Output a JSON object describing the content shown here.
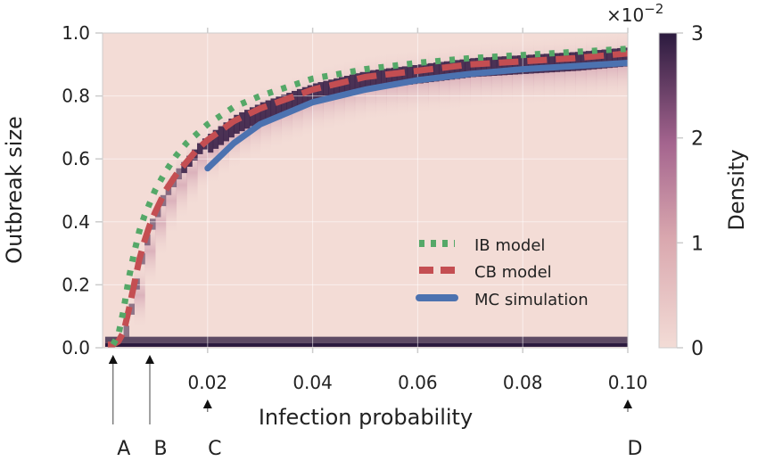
{
  "chart_data": {
    "type": "heatmap",
    "xlabel": "Infection probability",
    "ylabel": "Outbreak size",
    "xlim": [
      0.0,
      0.1
    ],
    "ylim": [
      0.0,
      1.0
    ],
    "xticks": [
      0.02,
      0.04,
      0.06,
      0.08,
      0.1
    ],
    "xtick_labels": [
      "0.02",
      "0.04",
      "0.06",
      "0.08",
      "0.10"
    ],
    "yticks": [
      0.0,
      0.2,
      0.4,
      0.6,
      0.8,
      1.0
    ],
    "ytick_labels": [
      "0.0",
      "0.2",
      "0.4",
      "0.6",
      "0.8",
      "1.0"
    ],
    "grid": true,
    "legend_position": "lower-right",
    "colorbar": {
      "label": "Density",
      "range": [
        0,
        3
      ],
      "ticks": [
        0,
        1,
        2,
        3
      ],
      "tick_labels": [
        "0",
        "1",
        "2",
        "3"
      ],
      "multiplier_label": "×10",
      "multiplier_exp": "−2",
      "color_low": "#f3dcd6",
      "color_high": "#2b1a3e"
    },
    "series": [
      {
        "name": "IB model",
        "style": "dotted",
        "color": "#55a868",
        "x": [
          0.002,
          0.003,
          0.004,
          0.005,
          0.006,
          0.007,
          0.008,
          0.009,
          0.01,
          0.012,
          0.014,
          0.016,
          0.018,
          0.02,
          0.025,
          0.03,
          0.04,
          0.05,
          0.06,
          0.07,
          0.08,
          0.09,
          0.1
        ],
        "y": [
          0.01,
          0.04,
          0.12,
          0.22,
          0.3,
          0.37,
          0.42,
          0.46,
          0.5,
          0.56,
          0.61,
          0.65,
          0.68,
          0.71,
          0.765,
          0.8,
          0.855,
          0.885,
          0.905,
          0.92,
          0.93,
          0.94,
          0.95
        ]
      },
      {
        "name": "CB model",
        "style": "dashed",
        "color": "#c44e52",
        "x": [
          0.001,
          0.002,
          0.003,
          0.004,
          0.005,
          0.006,
          0.007,
          0.008,
          0.009,
          0.01,
          0.012,
          0.014,
          0.016,
          0.018,
          0.02,
          0.025,
          0.03,
          0.04,
          0.05,
          0.06,
          0.07,
          0.08,
          0.09,
          0.1
        ],
        "y": [
          0.01,
          0.01,
          0.02,
          0.05,
          0.12,
          0.2,
          0.28,
          0.34,
          0.39,
          0.43,
          0.5,
          0.55,
          0.59,
          0.63,
          0.66,
          0.72,
          0.76,
          0.82,
          0.86,
          0.88,
          0.9,
          0.91,
          0.92,
          0.935
        ]
      },
      {
        "name": "MC simulation",
        "style": "solid",
        "color": "#4c72b0",
        "x": [
          0.02,
          0.025,
          0.03,
          0.04,
          0.05,
          0.06,
          0.07,
          0.08,
          0.09,
          0.1
        ],
        "y": [
          0.57,
          0.65,
          0.71,
          0.78,
          0.82,
          0.85,
          0.87,
          0.885,
          0.895,
          0.905
        ]
      }
    ],
    "arrows": [
      {
        "label": "A",
        "x": 0.002
      },
      {
        "label": "B",
        "x": 0.009
      },
      {
        "label": "C",
        "x": 0.02
      },
      {
        "label": "D",
        "x": 0.1
      }
    ]
  }
}
